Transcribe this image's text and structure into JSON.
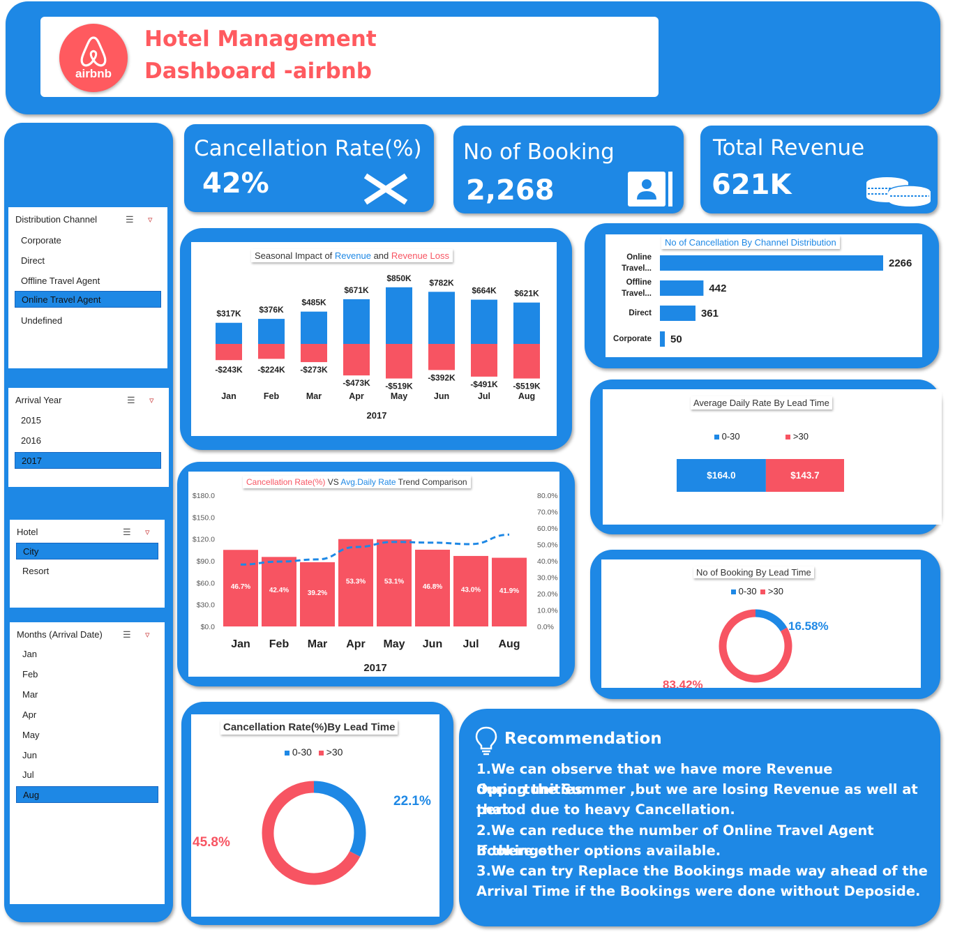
{
  "header": {
    "logo_text": "airbnb",
    "title_line1": "Hotel Management",
    "title_line2": "Dashboard -airbnb"
  },
  "kpis": {
    "cancellation": {
      "title": "Cancellation Rate(%)",
      "value": "42%",
      "icon": "close-x-icon"
    },
    "booking": {
      "title": "No of Booking",
      "value": "2,268",
      "icon": "contact-card-icon"
    },
    "revenue": {
      "title": "Total Revenue",
      "value": "621K",
      "icon": "coins-icon"
    }
  },
  "slicers": {
    "channel": {
      "title": "Distribution Channel",
      "items": [
        "Corporate",
        "Direct",
        "Offline Travel Agent",
        "Online Travel Agent",
        "Undefined"
      ],
      "selected": "Online Travel Agent"
    },
    "year": {
      "title": "Arrival Year",
      "items": [
        "2015",
        "2016",
        "2017"
      ],
      "selected": "2017"
    },
    "hotel": {
      "title": "Hotel",
      "items": [
        "City",
        "Resort"
      ],
      "selected": "City"
    },
    "months": {
      "title": "Months (Arrival Date)",
      "items": [
        "Jan",
        "Feb",
        "Mar",
        "Apr",
        "May",
        "Jun",
        "Jul",
        "Aug"
      ],
      "selected": "Aug"
    }
  },
  "seasonal_chart": {
    "title_parts": [
      "Seasonal Impact of ",
      "Revenue",
      " and ",
      "Revenue Loss"
    ],
    "xlabel": "2017",
    "revenue_labels": [
      "$317K",
      "$376K",
      "$485K",
      "$671K",
      "$850K",
      "$782K",
      "$664K",
      "$621K"
    ],
    "loss_labels": [
      "-$243K",
      "-$224K",
      "-$273K",
      "-$473K",
      "-$519K",
      "-$392K",
      "-$491K",
      "-$519K"
    ]
  },
  "trend_chart": {
    "title_parts": [
      "Cancellation Rate(%)",
      " VS ",
      "Avg.Daily Rate",
      " Trend Comparison"
    ],
    "xlabel": "2017",
    "left_ticks": [
      "$0.0",
      "$30.0",
      "$60.0",
      "$90.0",
      "$120.0",
      "$150.0",
      "$180.0"
    ],
    "right_ticks": [
      "0.0%",
      "10.0%",
      "20.0%",
      "30.0%",
      "40.0%",
      "50.0%",
      "60.0%",
      "70.0%",
      "80.0%"
    ],
    "bar_labels": [
      "46.7%",
      "42.4%",
      "39.2%",
      "53.3%",
      "53.1%",
      "46.8%",
      "43.0%",
      "41.9%"
    ]
  },
  "channel_chart": {
    "title": "No of Cancellation By Channel Distribution",
    "label_lines": [
      [
        "Online",
        "Travel..."
      ],
      [
        "Offline",
        "Travel..."
      ],
      [
        "Direct"
      ],
      [
        "Corporate"
      ]
    ]
  },
  "adr_chart": {
    "title": "Average Daily Rate By Lead Time",
    "labels": [
      "$164.0",
      "$143.7"
    ]
  },
  "booking_lead_chart": {
    "title": "No of Booking By Lead Time",
    "labels": [
      "16.58%",
      "83.42%"
    ]
  },
  "cancel_lead_chart": {
    "title": "Cancellation Rate(%)By Lead Time",
    "labels": [
      "22.1%",
      "45.8%"
    ]
  },
  "legend": {
    "a": "0-30",
    "b": ">30"
  },
  "recommendation": {
    "title": "Recommendation",
    "lines": [
      "1.We can observe that we have more Revenue Opportunities",
      "during the Summer ,but we are losing Revenue as well at that",
      "period due to heavy Cancellation.",
      "2.We can reduce the number of Online  Travel Agent Bookings",
      "if there other options available.",
      "3.We can try Replace  the Bookings made way ahead of the",
      "Arrival Time if the Bookings were done without Deposide."
    ]
  },
  "colors": {
    "blue": "#1e88e5",
    "red": "#f75462",
    "brand": "#ff5a5f"
  },
  "chart_data": [
    {
      "type": "bar",
      "title": "Seasonal Impact of Revenue and Revenue Loss",
      "xlabel": "2017",
      "categories": [
        "Jan",
        "Feb",
        "Mar",
        "Apr",
        "May",
        "Jun",
        "Jul",
        "Aug"
      ],
      "series": [
        {
          "name": "Revenue",
          "values": [
            317,
            376,
            485,
            671,
            850,
            782,
            664,
            621
          ]
        },
        {
          "name": "Revenue Loss",
          "values": [
            -243,
            -224,
            -273,
            -473,
            -519,
            -392,
            -491,
            -519
          ]
        }
      ]
    },
    {
      "type": "bar",
      "title": "Cancellation Rate(%) VS Avg.Daily Rate Trend Comparison",
      "xlabel": "2017",
      "categories": [
        "Jan",
        "Feb",
        "Mar",
        "Apr",
        "May",
        "Jun",
        "Jul",
        "Aug"
      ],
      "series": [
        {
          "name": "Cancellation Rate(%)",
          "values": [
            46.7,
            42.4,
            39.2,
            53.3,
            53.1,
            46.8,
            43.0,
            41.9
          ]
        },
        {
          "name": "Avg.Daily Rate",
          "values": [
            85,
            89,
            92,
            109,
            116,
            115,
            113,
            126
          ]
        }
      ],
      "ylim": [
        0,
        180
      ],
      "y2lim": [
        0,
        80
      ]
    },
    {
      "type": "bar",
      "title": "No of Cancellation By Channel Distribution",
      "categories": [
        "Online Travel...",
        "Offline Travel...",
        "Direct",
        "Corporate"
      ],
      "values": [
        2266,
        442,
        361,
        50
      ]
    },
    {
      "type": "bar",
      "title": "Average Daily Rate By Lead Time",
      "categories": [
        "0-30",
        ">30"
      ],
      "values": [
        164.0,
        143.7
      ]
    },
    {
      "type": "pie",
      "title": "No of Booking By Lead Time",
      "categories": [
        "0-30",
        ">30"
      ],
      "values": [
        16.58,
        83.42
      ]
    },
    {
      "type": "pie",
      "title": "Cancellation Rate(%)By Lead Time",
      "categories": [
        "0-30",
        ">30"
      ],
      "values": [
        22.1,
        45.8
      ]
    }
  ]
}
